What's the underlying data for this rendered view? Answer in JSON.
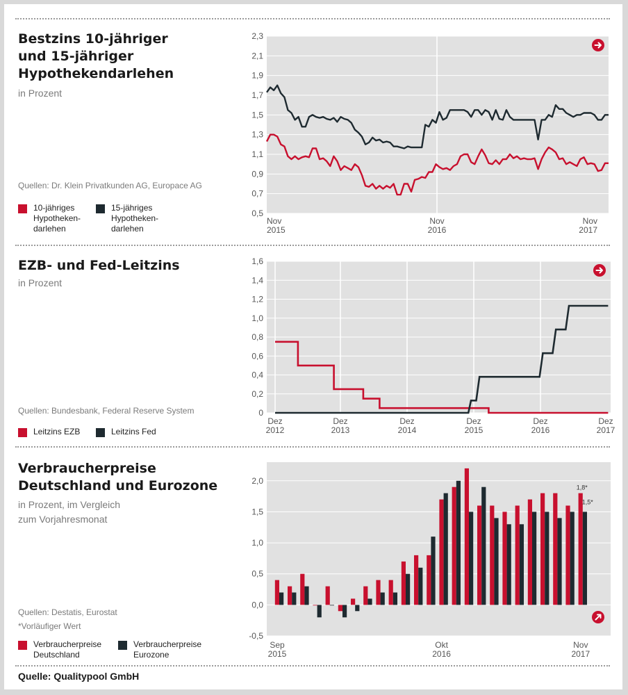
{
  "panels": [
    {
      "title": "Bestzins 10-jähriger\nund 15-jähriger\nHypothekendarlehen",
      "subtitle": "in Prozent",
      "source": "Quellen: Dr. Klein Privatkunden AG, Europace AG",
      "legend": [
        {
          "label": "10-jähriges\nHypotheken-\ndarlehen",
          "color": "#c8102e"
        },
        {
          "label": "15-jähriges\nHypotheken-\ndarlehen",
          "color": "#1e2a30"
        }
      ]
    },
    {
      "title": "EZB- und Fed-Leitzins",
      "subtitle": "in Prozent",
      "source": "Quellen: Bundesbank, Federal Reserve System",
      "legend": [
        {
          "label": "Leitzins EZB",
          "color": "#c8102e"
        },
        {
          "label": "Leitzins Fed",
          "color": "#1e2a30"
        }
      ]
    },
    {
      "title": "Verbraucherpreise\nDeutschland und Eurozone",
      "subtitle": "in Prozent, im Vergleich\nzum Vorjahresmonat",
      "source": "Quellen: Destatis, Eurostat",
      "note": "*Vorläufiger Wert",
      "legend": [
        {
          "label": "Verbraucherpreise\nDeutschland",
          "color": "#c8102e"
        },
        {
          "label": "Verbraucherpreise\nEurozone",
          "color": "#1e2a30"
        }
      ]
    }
  ],
  "footer": "Quelle: Qualitypool GmbH",
  "colors": {
    "red": "#c8102e",
    "dark": "#1e2a30",
    "plot_bg": "#e1e1e1"
  },
  "icons": [
    "arrow-right-circle-icon",
    "arrow-right-circle-icon",
    "arrow-up-right-circle-icon"
  ],
  "chart_data": [
    {
      "type": "line",
      "ylim": [
        0.5,
        2.3
      ],
      "yticks": [
        "0,5",
        "0,7",
        "0,9",
        "1,1",
        "1,3",
        "1,5",
        "1,7",
        "1,9",
        "2,1",
        "2,3"
      ],
      "xticks": [
        {
          "line1": "Nov",
          "line2": "2015"
        },
        {
          "line1": "Nov",
          "line2": "2016"
        },
        {
          "line1": "Nov",
          "line2": "2017"
        }
      ],
      "series": [
        {
          "name": "10-jähriges Hypothekendarlehen",
          "color": "#c8102e",
          "values": [
            1.23,
            1.3,
            1.3,
            1.28,
            1.2,
            1.18,
            1.08,
            1.05,
            1.08,
            1.05,
            1.07,
            1.08,
            1.07,
            1.16,
            1.16,
            1.05,
            1.06,
            1.03,
            0.98,
            1.08,
            1.03,
            0.94,
            0.98,
            0.96,
            0.94,
            1.0,
            0.97,
            0.89,
            0.78,
            0.77,
            0.8,
            0.75,
            0.78,
            0.75,
            0.78,
            0.76,
            0.8,
            0.69,
            0.69,
            0.8,
            0.8,
            0.72,
            0.84,
            0.85,
            0.87,
            0.86,
            0.92,
            0.92,
            1.0,
            0.97,
            0.95,
            0.96,
            0.94,
            0.98,
            1.0,
            1.08,
            1.1,
            1.1,
            1.02,
            1.0,
            1.08,
            1.15,
            1.09,
            1.01,
            1.0,
            1.04,
            1.0,
            1.05,
            1.05,
            1.1,
            1.06,
            1.08,
            1.05,
            1.06,
            1.05,
            1.05,
            1.06,
            0.95,
            1.05,
            1.12,
            1.17,
            1.15,
            1.12,
            1.05,
            1.06,
            1.0,
            1.02,
            1.0,
            0.98,
            1.05,
            1.07,
            1.0,
            1.01,
            1.0,
            0.93,
            0.94,
            1.01,
            1.01
          ]
        },
        {
          "name": "15-jähriges Hypothekendarlehen",
          "color": "#1e2a30",
          "values": [
            1.73,
            1.78,
            1.75,
            1.8,
            1.72,
            1.68,
            1.55,
            1.52,
            1.45,
            1.48,
            1.38,
            1.38,
            1.48,
            1.5,
            1.48,
            1.47,
            1.48,
            1.46,
            1.45,
            1.47,
            1.43,
            1.48,
            1.46,
            1.45,
            1.42,
            1.35,
            1.32,
            1.28,
            1.2,
            1.22,
            1.27,
            1.24,
            1.25,
            1.22,
            1.23,
            1.22,
            1.18,
            1.18,
            1.17,
            1.16,
            1.18,
            1.17,
            1.17,
            1.17,
            1.17,
            1.4,
            1.38,
            1.45,
            1.42,
            1.53,
            1.45,
            1.47,
            1.55,
            1.55,
            1.55,
            1.55,
            1.55,
            1.53,
            1.48,
            1.55,
            1.55,
            1.5,
            1.55,
            1.53,
            1.45,
            1.55,
            1.46,
            1.45,
            1.55,
            1.48,
            1.45,
            1.45,
            1.45,
            1.45,
            1.45,
            1.45,
            1.45,
            1.25,
            1.45,
            1.45,
            1.5,
            1.48,
            1.6,
            1.56,
            1.56,
            1.52,
            1.5,
            1.48,
            1.5,
            1.5,
            1.52,
            1.52,
            1.52,
            1.5,
            1.45,
            1.45,
            1.5,
            1.5
          ]
        }
      ]
    },
    {
      "type": "line",
      "ylim": [
        0,
        1.6
      ],
      "yticks": [
        "0",
        "0,2",
        "0,4",
        "0,6",
        "0,8",
        "1,0",
        "1,2",
        "1,4",
        "1,6"
      ],
      "xticks": [
        {
          "line1": "Dez",
          "line2": "2012"
        },
        {
          "line1": "Dez",
          "line2": "2013"
        },
        {
          "line1": "Dez",
          "line2": "2014"
        },
        {
          "line1": "Dez",
          "line2": "2015"
        },
        {
          "line1": "Dez",
          "line2": "2016"
        },
        {
          "line1": "Dez",
          "line2": "2017"
        }
      ],
      "series": [
        {
          "name": "Leitzins EZB",
          "color": "#c8102e",
          "steps": [
            [
              0.0,
              0.75
            ],
            [
              0.35,
              0.75
            ],
            [
              0.35,
              0.5
            ],
            [
              0.9,
              0.5
            ],
            [
              0.9,
              0.25
            ],
            [
              1.35,
              0.25
            ],
            [
              1.35,
              0.15
            ],
            [
              1.6,
              0.15
            ],
            [
              1.6,
              0.05
            ],
            [
              3.27,
              0.05
            ],
            [
              3.27,
              0.0
            ],
            [
              5.1,
              0.0
            ]
          ]
        },
        {
          "name": "Leitzins Fed",
          "color": "#1e2a30",
          "steps": [
            [
              0.0,
              0.0
            ],
            [
              2.96,
              0.0
            ],
            [
              3.0,
              0.13
            ],
            [
              3.08,
              0.13
            ],
            [
              3.13,
              0.38
            ],
            [
              4.05,
              0.38
            ],
            [
              4.1,
              0.63
            ],
            [
              4.25,
              0.63
            ],
            [
              4.3,
              0.88
            ],
            [
              4.45,
              0.88
            ],
            [
              4.5,
              1.13
            ],
            [
              5.1,
              1.13
            ]
          ]
        }
      ]
    },
    {
      "type": "bar",
      "ylim": [
        -0.5,
        2.3
      ],
      "yticks": [
        "-0,5",
        "0,0",
        "0,5",
        "1,0",
        "1,5",
        "2,0"
      ],
      "xticks": [
        {
          "line1": "Sep",
          "line2": "2015"
        },
        {
          "line1": "Okt",
          "line2": "2016"
        },
        {
          "line1": "Nov",
          "line2": "2017"
        }
      ],
      "annotations": [
        "1,8*",
        "1,5*"
      ],
      "series": [
        {
          "name": "Verbraucherpreise Deutschland",
          "color": "#c8102e",
          "values": [
            0.4,
            0.3,
            0.5,
            0.0,
            0.3,
            -0.1,
            0.1,
            0.3,
            0.4,
            0.4,
            0.7,
            0.8,
            0.8,
            1.7,
            1.9,
            2.2,
            1.6,
            1.6,
            1.5,
            1.6,
            1.7,
            1.8,
            1.8,
            1.6,
            1.8
          ]
        },
        {
          "name": "Verbraucherpreise Eurozone",
          "color": "#1e2a30",
          "values": [
            0.2,
            0.2,
            0.3,
            -0.2,
            0.0,
            -0.2,
            -0.1,
            0.1,
            0.2,
            0.2,
            0.5,
            0.6,
            1.1,
            1.8,
            2.0,
            1.5,
            1.9,
            1.4,
            1.3,
            1.3,
            1.5,
            1.5,
            1.4,
            1.5,
            1.5
          ]
        }
      ]
    }
  ]
}
